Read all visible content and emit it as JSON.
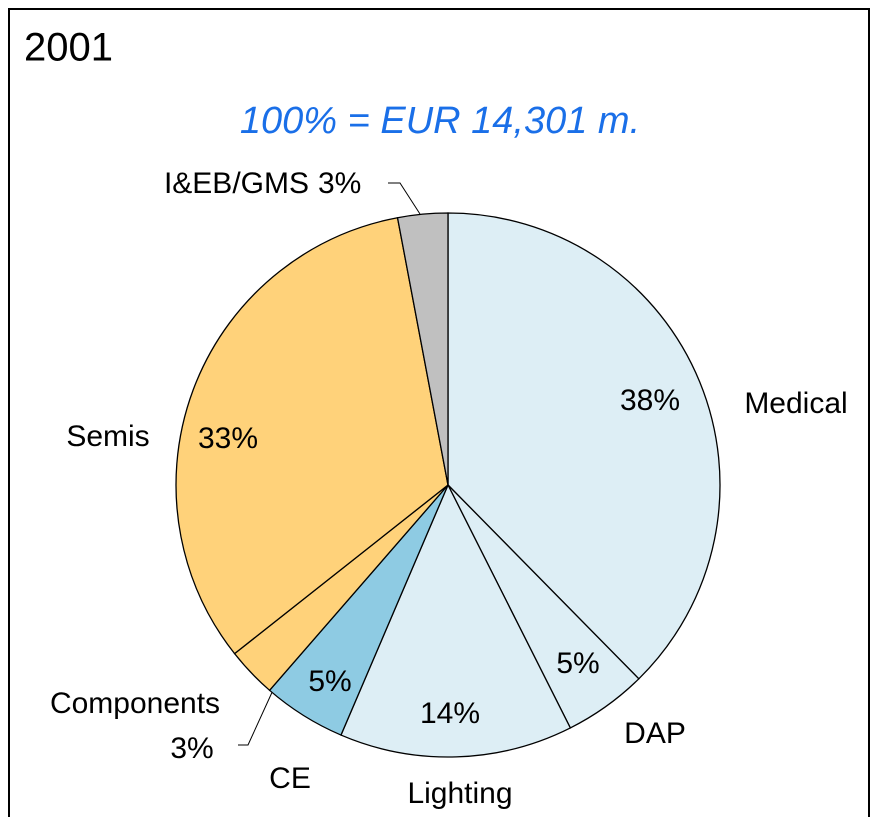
{
  "chart_data": {
    "type": "pie",
    "title": "2001",
    "subtitle": "100% = EUR 14,301 m.",
    "categories": [
      "Medical",
      "DAP",
      "Lighting",
      "CE",
      "Components",
      "Semis",
      "I&EB/GMS"
    ],
    "values": [
      38,
      5,
      14,
      5,
      3,
      33,
      3
    ],
    "value_labels": [
      "38%",
      "5%",
      "14%",
      "5%",
      "3%",
      "33%",
      "3%"
    ],
    "colors": [
      "#ddeef5",
      "#ddeef5",
      "#ddeef5",
      "#8ecbe3",
      "#ffd27a",
      "#ffd27a",
      "#c0c0c0"
    ]
  }
}
